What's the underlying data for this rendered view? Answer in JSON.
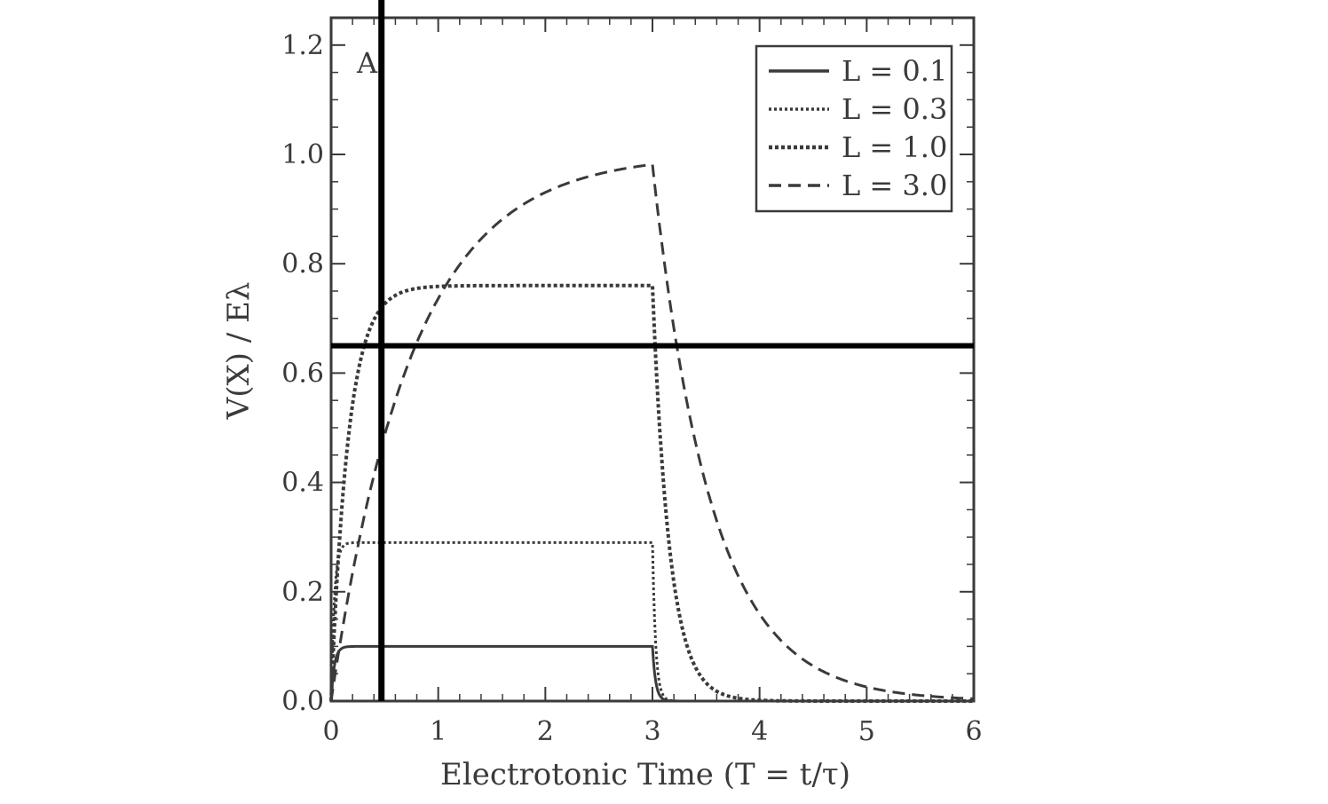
{
  "chart_data": {
    "type": "line",
    "panel_label": "A",
    "xlabel": "Electrotonic Time (T = t/τ)",
    "ylabel": "V(X) / Eλ",
    "xlim": [
      0,
      6
    ],
    "ylim": [
      0,
      1.25
    ],
    "x_ticks": [
      0,
      1,
      2,
      3,
      4,
      5,
      6
    ],
    "x_tick_labels": [
      "0",
      "1",
      "2",
      "3",
      "4",
      "5",
      "6"
    ],
    "y_ticks": [
      0,
      0.2,
      0.4,
      0.6,
      0.8,
      1.0,
      1.2
    ],
    "y_tick_labels": [
      "0.0",
      "0.2",
      "0.4",
      "0.6",
      "0.8",
      "1.0",
      "1.2"
    ],
    "grid": false,
    "legend_position": "top-right",
    "pulse_end": 3.0,
    "series": [
      {
        "name": "L = 0.1",
        "style": "solid",
        "plateau": 0.1,
        "tau_rise": 0.03,
        "tau_fall": 0.03
      },
      {
        "name": "L = 0.3",
        "style": "dotted",
        "plateau": 0.29,
        "tau_rise": 0.03,
        "tau_fall": 0.03
      },
      {
        "name": "L = 1.0",
        "style": "dense-dotted",
        "plateau": 0.76,
        "tau_rise": 0.16,
        "tau_fall": 0.16
      },
      {
        "name": "L = 3.0",
        "style": "dashed",
        "plateau": 1.0,
        "tau_rise": 0.75,
        "tau_fall": 0.55
      }
    ],
    "reference_lines": [
      {
        "orientation": "vertical",
        "x": 0.47
      },
      {
        "orientation": "horizontal",
        "y": 0.65
      }
    ]
  }
}
